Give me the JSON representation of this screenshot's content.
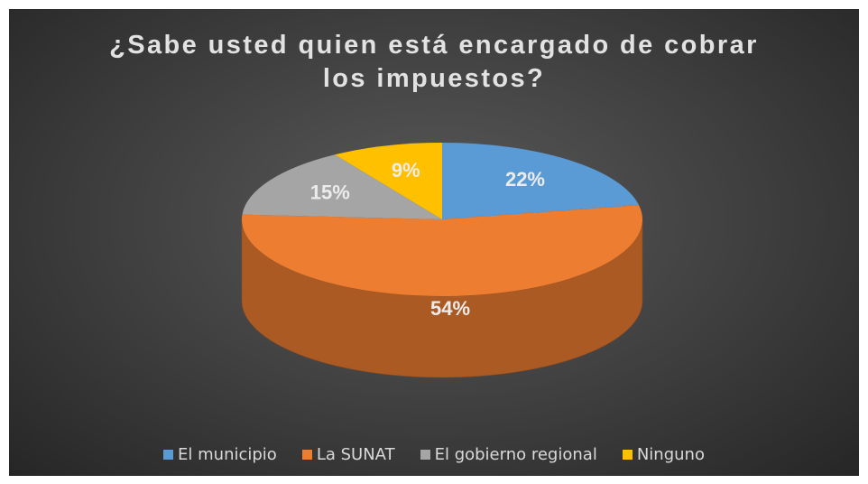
{
  "chart_data": {
    "type": "pie",
    "title": "¿Sabe usted quien está encargado de cobrar los impuestos?",
    "categories": [
      "El municipio",
      "La SUNAT",
      "El gobierno regional",
      "Ninguno"
    ],
    "values": [
      22,
      54,
      15,
      9
    ],
    "value_labels": [
      "22%",
      "54%",
      "15%",
      "9%"
    ],
    "colors": [
      "#5b9bd5",
      "#ed7d31",
      "#a5a5a5",
      "#ffc000"
    ],
    "legend": "bottom"
  }
}
